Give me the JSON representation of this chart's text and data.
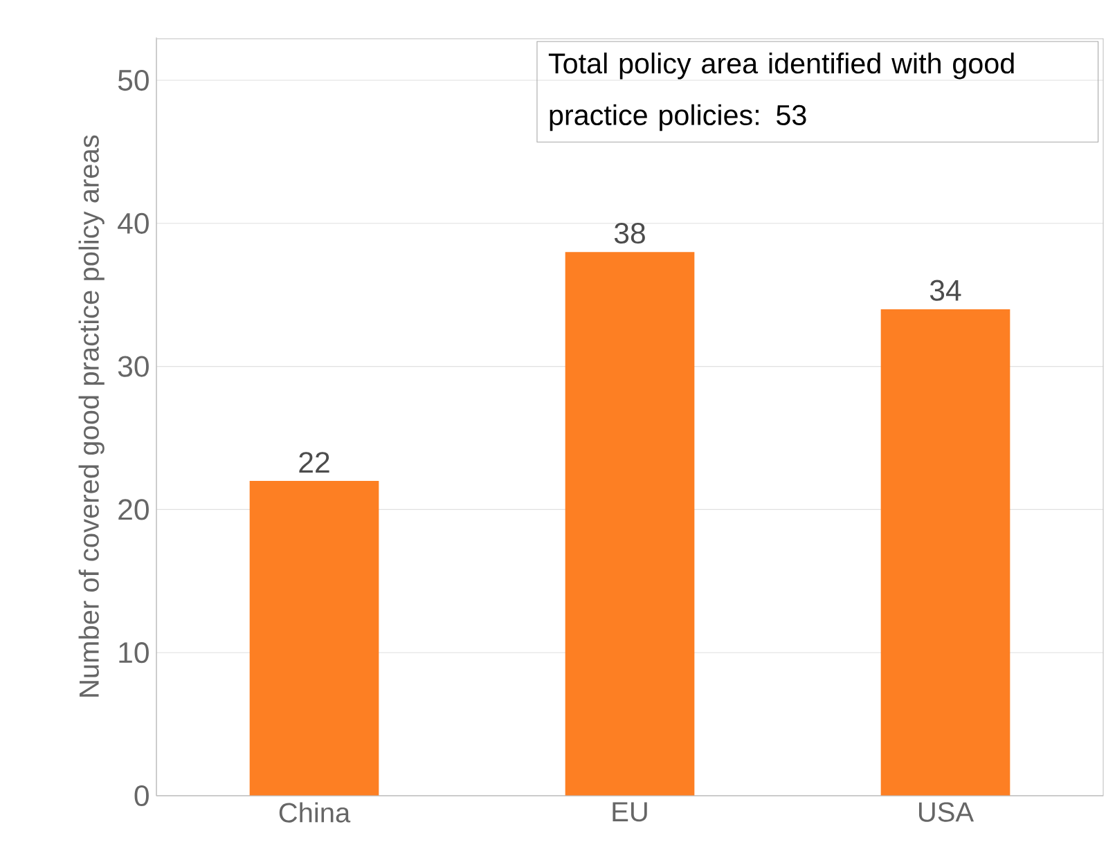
{
  "chart_data": {
    "type": "bar",
    "ylabel": "Number of covered good practice policy areas",
    "categories": [
      "China",
      "EU",
      "USA"
    ],
    "values": [
      22,
      38,
      34
    ],
    "color": "#fd7f23",
    "ylim": [
      0,
      53
    ],
    "yticks": [
      0,
      10,
      20,
      30,
      40,
      50
    ],
    "grid": "y",
    "data_labels": true,
    "annotations": [
      "Total policy area identified with good practice policies: 53"
    ]
  }
}
